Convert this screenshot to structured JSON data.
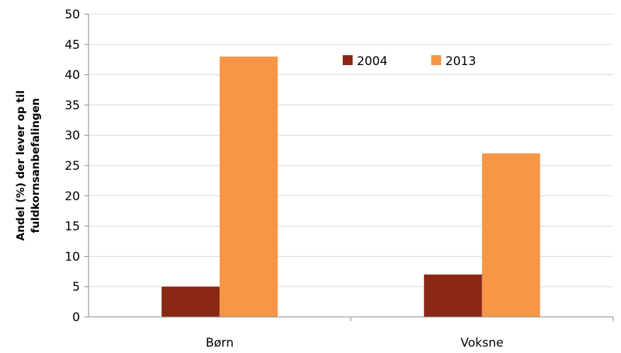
{
  "chart_data": {
    "type": "bar",
    "categories": [
      "Børn",
      "Voksne"
    ],
    "series": [
      {
        "name": "2004",
        "values": [
          5,
          7
        ],
        "color": "#8b2715"
      },
      {
        "name": "2013",
        "values": [
          43,
          27
        ],
        "color": "#f79646"
      }
    ],
    "title": "",
    "xlabel": "",
    "ylabel_lines": [
      "Andel (%) der lever op til",
      "fuldkornsanbefalingen"
    ],
    "ylim": [
      0,
      50
    ],
    "yticks": [
      0,
      5,
      10,
      15,
      20,
      25,
      30,
      35,
      40,
      45,
      50
    ],
    "grid": true,
    "legend_position": "top-right",
    "grid_color": "#d9d9d9",
    "axis_color": "#868686"
  }
}
